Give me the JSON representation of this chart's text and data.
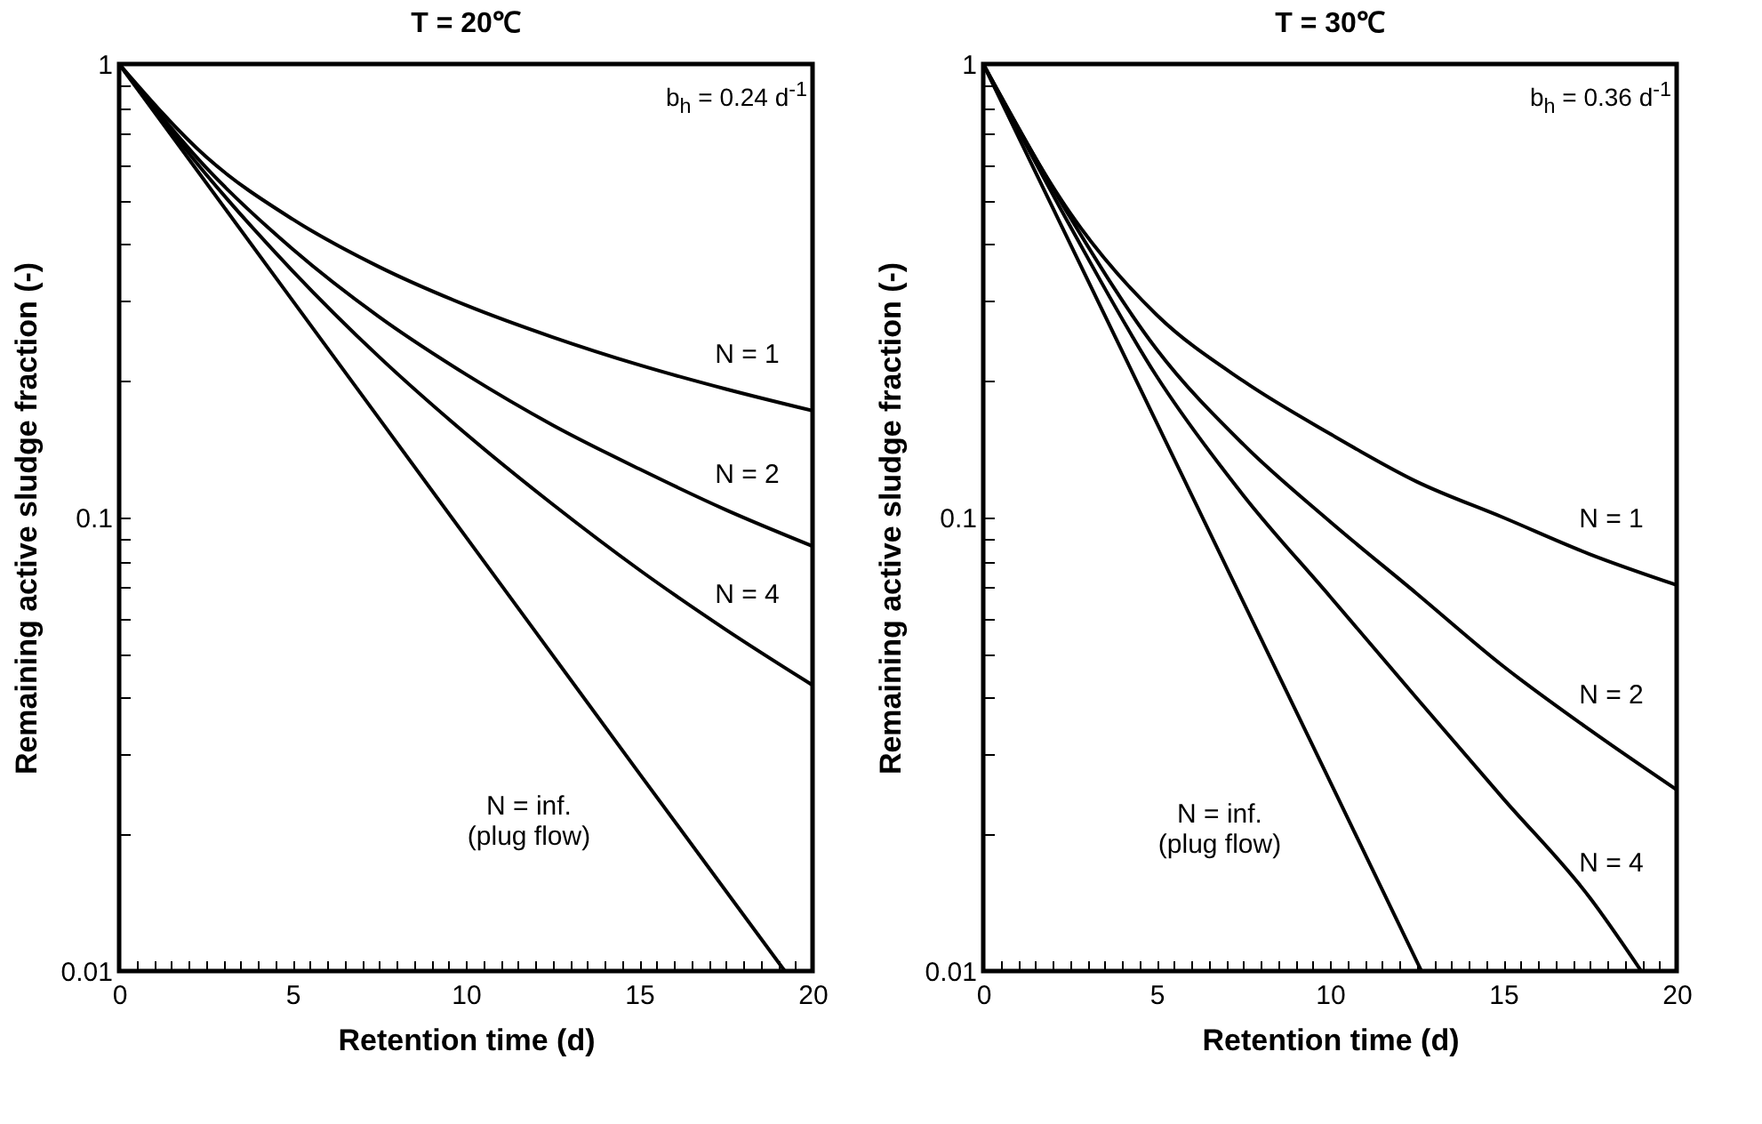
{
  "chart_data": [
    {
      "type": "line",
      "title": "T = 20℃",
      "xlabel": "Retention time (d)",
      "ylabel": "Remaining active sludge fraction (-)",
      "log": "y",
      "grid": false,
      "legend": false,
      "annotations": [
        "b$_{h}$ = 0.24 d$^{-1}$"
      ],
      "xlim": [
        0,
        20
      ],
      "ylim": [
        0.01,
        1
      ],
      "xticks": [
        0,
        {
          "value": 0.5,
          "label": null
        },
        {
          "value": 1,
          "label": null
        },
        {
          "value": 1.5,
          "label": null
        },
        {
          "value": 2,
          "label": null
        },
        {
          "value": 2.5,
          "label": null
        },
        {
          "value": 3,
          "label": null
        },
        {
          "value": 3.5,
          "label": null
        },
        {
          "value": 4,
          "label": null
        },
        {
          "value": 4.5,
          "label": null
        },
        5,
        {
          "value": 5.5,
          "label": null
        },
        {
          "value": 6,
          "label": null
        },
        {
          "value": 6.5,
          "label": null
        },
        {
          "value": 7,
          "label": null
        },
        {
          "value": 7.5,
          "label": null
        },
        {
          "value": 8,
          "label": null
        },
        {
          "value": 8.5,
          "label": null
        },
        {
          "value": 9,
          "label": null
        },
        {
          "value": 9.5,
          "label": null
        },
        10,
        {
          "value": 10.5,
          "label": null
        },
        {
          "value": 11,
          "label": null
        },
        {
          "value": 11.5,
          "label": null
        },
        {
          "value": 12,
          "label": null
        },
        {
          "value": 12.5,
          "label": null
        },
        {
          "value": 13,
          "label": null
        },
        {
          "value": 13.5,
          "label": null
        },
        {
          "value": 14,
          "label": null
        },
        {
          "value": 14.5,
          "label": null
        },
        15,
        {
          "value": 15.5,
          "label": null
        },
        {
          "value": 16,
          "label": null
        },
        {
          "value": 16.5,
          "label": null
        },
        {
          "value": 17,
          "label": null
        },
        {
          "value": 17.5,
          "label": null
        },
        {
          "value": 18,
          "label": null
        },
        {
          "value": 18.5,
          "label": null
        },
        {
          "value": 19,
          "label": null
        },
        {
          "value": 19.5,
          "label": null
        },
        20
      ],
      "yticks": [
        0.01,
        {
          "value": 0.02,
          "label": null
        },
        {
          "value": 0.03,
          "label": null
        },
        {
          "value": 0.04,
          "label": null
        },
        {
          "value": 0.05,
          "label": null
        },
        {
          "value": 0.06,
          "label": null
        },
        {
          "value": 0.07,
          "label": null
        },
        {
          "value": 0.08,
          "label": null
        },
        {
          "value": 0.09,
          "label": null
        },
        0.1,
        {
          "value": 0.2,
          "label": null
        },
        {
          "value": 0.3,
          "label": null
        },
        {
          "value": 0.4,
          "label": null
        },
        {
          "value": 0.5,
          "label": null
        },
        {
          "value": 0.6,
          "label": null
        },
        {
          "value": 0.7,
          "label": null
        },
        {
          "value": 0.8,
          "label": null
        },
        {
          "value": 0.9,
          "label": null
        },
        1
      ],
      "series": [
        {
          "name": "N = 1",
          "color": "#000000",
          "x": [
            0,
            2.5,
            5,
            7.5,
            10,
            12.5,
            15,
            17.5,
            20
          ],
          "values": [
            1,
            0.625,
            0.455,
            0.357,
            0.294,
            0.25,
            0.217,
            0.192,
            0.172
          ]
        },
        {
          "name": "N = 2",
          "color": "#000000",
          "x": [
            0,
            2.5,
            5,
            7.5,
            10,
            12.5,
            15,
            17.5,
            20
          ],
          "values": [
            1,
            0.592,
            0.391,
            0.277,
            0.207,
            0.16,
            0.128,
            0.104,
            0.0865
          ]
        },
        {
          "name": "N = 4",
          "color": "#000000",
          "x": [
            0,
            2.5,
            5,
            7.5,
            10,
            12.5,
            15,
            17.5,
            20
          ],
          "values": [
            1,
            0.572,
            0.35,
            0.226,
            0.153,
            0.107,
            0.0767,
            0.0566,
            0.0427
          ]
        },
        {
          "name": "N = inf.\n(plug flow)",
          "color": "#000000",
          "x": [
            0,
            5,
            10,
            15,
            19.2
          ],
          "values": [
            1,
            0.301,
            0.0907,
            0.0273,
            0.01
          ]
        }
      ]
    },
    {
      "type": "line",
      "title": "T = 30℃",
      "xlabel": "Retention time (d)",
      "ylabel": "Remaining active sludge fraction (-)",
      "log": "y",
      "grid": false,
      "legend": false,
      "annotations": [
        "b$_{h}$ = 0.36 d$^{-1}$"
      ],
      "xlim": [
        0,
        20
      ],
      "ylim": [
        0.01,
        1
      ],
      "xticks": [
        0,
        {
          "value": 0.5,
          "label": null
        },
        {
          "value": 1,
          "label": null
        },
        {
          "value": 1.5,
          "label": null
        },
        {
          "value": 2,
          "label": null
        },
        {
          "value": 2.5,
          "label": null
        },
        {
          "value": 3,
          "label": null
        },
        {
          "value": 3.5,
          "label": null
        },
        {
          "value": 4,
          "label": null
        },
        {
          "value": 4.5,
          "label": null
        },
        5,
        {
          "value": 5.5,
          "label": null
        },
        {
          "value": 6,
          "label": null
        },
        {
          "value": 6.5,
          "label": null
        },
        {
          "value": 7,
          "label": null
        },
        {
          "value": 7.5,
          "label": null
        },
        {
          "value": 8,
          "label": null
        },
        {
          "value": 8.5,
          "label": null
        },
        {
          "value": 9,
          "label": null
        },
        {
          "value": 9.5,
          "label": null
        },
        10,
        {
          "value": 10.5,
          "label": null
        },
        {
          "value": 11,
          "label": null
        },
        {
          "value": 11.5,
          "label": null
        },
        {
          "value": 12,
          "label": null
        },
        {
          "value": 12.5,
          "label": null
        },
        {
          "value": 13,
          "label": null
        },
        {
          "value": 13.5,
          "label": null
        },
        {
          "value": 14,
          "label": null
        },
        {
          "value": 14.5,
          "label": null
        },
        15,
        {
          "value": 15.5,
          "label": null
        },
        {
          "value": 16,
          "label": null
        },
        {
          "value": 16.5,
          "label": null
        },
        {
          "value": 17,
          "label": null
        },
        {
          "value": 17.5,
          "label": null
        },
        {
          "value": 18,
          "label": null
        },
        {
          "value": 18.5,
          "label": null
        },
        {
          "value": 19,
          "label": null
        },
        {
          "value": 19.5,
          "label": null
        },
        20
      ],
      "yticks": [
        0.01,
        {
          "value": 0.02,
          "label": null
        },
        {
          "value": 0.03,
          "label": null
        },
        {
          "value": 0.04,
          "label": null
        },
        {
          "value": 0.05,
          "label": null
        },
        {
          "value": 0.06,
          "label": null
        },
        {
          "value": 0.07,
          "label": null
        },
        {
          "value": 0.08,
          "label": null
        },
        {
          "value": 0.09,
          "label": null
        },
        0.1,
        {
          "value": 0.2,
          "label": null
        },
        {
          "value": 0.3,
          "label": null
        },
        {
          "value": 0.4,
          "label": null
        },
        {
          "value": 0.5,
          "label": null
        },
        {
          "value": 0.6,
          "label": null
        },
        {
          "value": 0.7,
          "label": null
        },
        {
          "value": 0.8,
          "label": null
        },
        {
          "value": 0.9,
          "label": null
        },
        1
      ],
      "series": [
        {
          "name": "N = 1",
          "color": "#000000",
          "x": [
            0,
            2.5,
            5,
            7.5,
            10,
            12.5,
            15,
            17.5,
            20
          ],
          "values": [
            1,
            0.47,
            0.28,
            0.2,
            0.153,
            0.12,
            0.1,
            0.083,
            0.071
          ]
        },
        {
          "name": "N = 2",
          "color": "#000000",
          "x": [
            0,
            2.5,
            5,
            7.5,
            10,
            12.5,
            15,
            17.5,
            20
          ],
          "values": [
            1,
            0.46,
            0.235,
            0.145,
            0.098,
            0.068,
            0.047,
            0.034,
            0.0251
          ]
        },
        {
          "name": "N = 4",
          "color": "#000000",
          "x": [
            0,
            2.5,
            5,
            7.5,
            10,
            12.5,
            15,
            17.5,
            18.98
          ],
          "values": [
            1,
            0.44,
            0.205,
            0.112,
            0.067,
            0.04,
            0.024,
            0.0145,
            0.01
          ]
        },
        {
          "name": "N = inf.\n(plug flow)",
          "color": "#000000",
          "x": [
            0,
            5,
            10,
            12.64
          ],
          "values": [
            1,
            0.162,
            0.0262,
            0.01
          ]
        }
      ]
    }
  ]
}
